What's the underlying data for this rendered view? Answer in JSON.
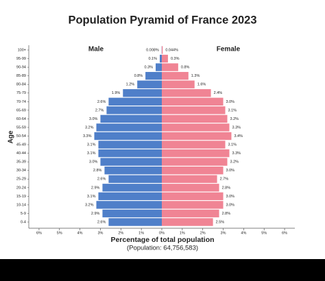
{
  "chart_data": {
    "type": "pyramid",
    "title": "Population Pyramid of France 2023",
    "xlabel": "Percentage of total population",
    "subtitle": "(Population: 64,756,583)",
    "ylabel": "Age",
    "categories": [
      "0-4",
      "5-9",
      "10-14",
      "15-19",
      "20-24",
      "25-29",
      "30-34",
      "35-39",
      "40-44",
      "45-49",
      "50-54",
      "55-59",
      "60-64",
      "65-69",
      "70-74",
      "75-79",
      "80-84",
      "85-89",
      "90-94",
      "95-99",
      "100+"
    ],
    "series": [
      {
        "name": "Male",
        "color": "#4f7fc9",
        "values": [
          2.6,
          2.9,
          3.2,
          3.1,
          2.9,
          2.6,
          2.8,
          3.0,
          3.1,
          3.1,
          3.3,
          3.2,
          3.0,
          2.7,
          2.6,
          1.9,
          1.2,
          0.8,
          0.3,
          0.1,
          0.008
        ],
        "value_labels": [
          "2.6%",
          "2.9%",
          "3.2%",
          "3.1%",
          "2.9%",
          "2.6%",
          "2.8%",
          "3.0%",
          "3.1%",
          "3.1%",
          "3.3%",
          "3.2%",
          "3.0%",
          "2.7%",
          "2.6%",
          "1.9%",
          "1.2%",
          "0.8%",
          "0.3%",
          "0.1%",
          "0.008%"
        ]
      },
      {
        "name": "Female",
        "color": "#f08494",
        "values": [
          2.5,
          2.8,
          3.0,
          3.0,
          2.8,
          2.7,
          3.0,
          3.2,
          3.3,
          3.1,
          3.4,
          3.3,
          3.2,
          3.1,
          3.0,
          2.4,
          1.6,
          1.3,
          0.8,
          0.3,
          0.044
        ],
        "value_labels": [
          "2.5%",
          "2.8%",
          "3.0%",
          "3.0%",
          "2.8%",
          "2.7%",
          "3.0%",
          "3.2%",
          "3.3%",
          "3.1%",
          "3.4%",
          "3.3%",
          "3.2%",
          "3.1%",
          "3.0%",
          "2.4%",
          "1.6%",
          "1.3%",
          "0.8%",
          "0.3%",
          "0.044%"
        ]
      }
    ],
    "xlim": [
      -6.5,
      6.5
    ],
    "xticks": [
      {
        "value": -6,
        "label": "6%"
      },
      {
        "value": -5,
        "label": "5%"
      },
      {
        "value": -4,
        "label": "4%"
      },
      {
        "value": -3,
        "label": "3%"
      },
      {
        "value": -2,
        "label": "2%"
      },
      {
        "value": -1,
        "label": "1%"
      },
      {
        "value": 0,
        "label": "0%"
      },
      {
        "value": 1,
        "label": "1%"
      },
      {
        "value": 2,
        "label": "2%"
      },
      {
        "value": 3,
        "label": "3%"
      },
      {
        "value": 4,
        "label": "4%"
      },
      {
        "value": 5,
        "label": "5%"
      },
      {
        "value": 6,
        "label": "6%"
      }
    ]
  }
}
